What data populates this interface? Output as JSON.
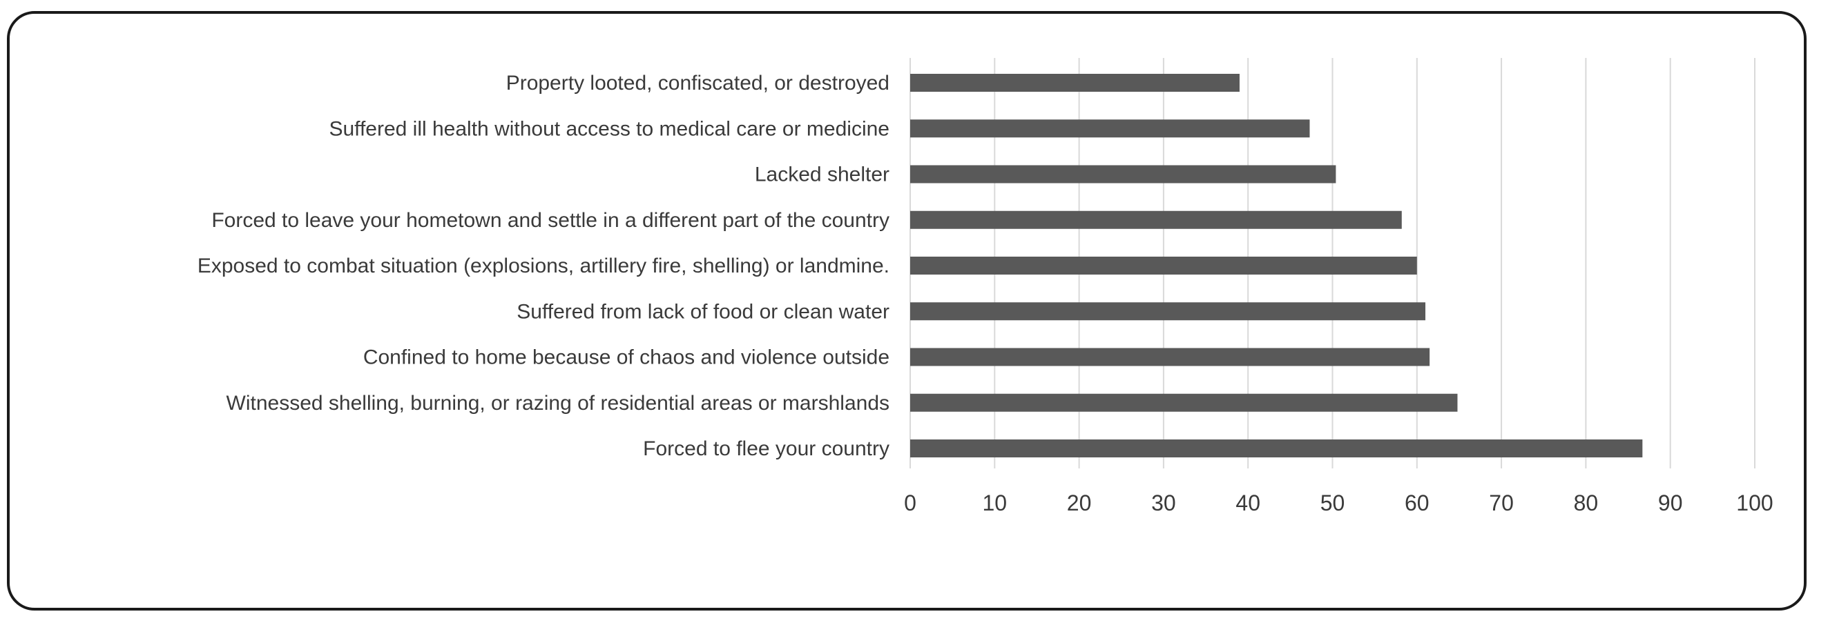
{
  "chart_data": {
    "type": "bar",
    "orientation": "horizontal",
    "title": "",
    "xlabel": "",
    "ylabel": "",
    "categories": [
      "Property looted, confiscated, or destroyed",
      "Suffered ill health without access to medical care or medicine",
      "Lacked shelter",
      "Forced to leave your hometown and settle in a different part of the country",
      "Exposed to combat situation (explosions, artillery fire, shelling) or landmine.",
      "Suffered from lack of food or clean water",
      "Confined to home because of chaos and violence outside",
      "Witnessed shelling, burning, or razing of residential areas or marshlands",
      "Forced to flee your country"
    ],
    "values": [
      39,
      47.3,
      50.4,
      58.2,
      60,
      61,
      61.5,
      64.8,
      86.7
    ],
    "xlim": [
      0,
      100
    ],
    "x_ticks": [
      0,
      10,
      20,
      30,
      40,
      50,
      60,
      70,
      80,
      90,
      100
    ],
    "grid": "vertical",
    "legend": "none",
    "bar_color": "#595959",
    "grid_color": "#d9d9d9"
  }
}
